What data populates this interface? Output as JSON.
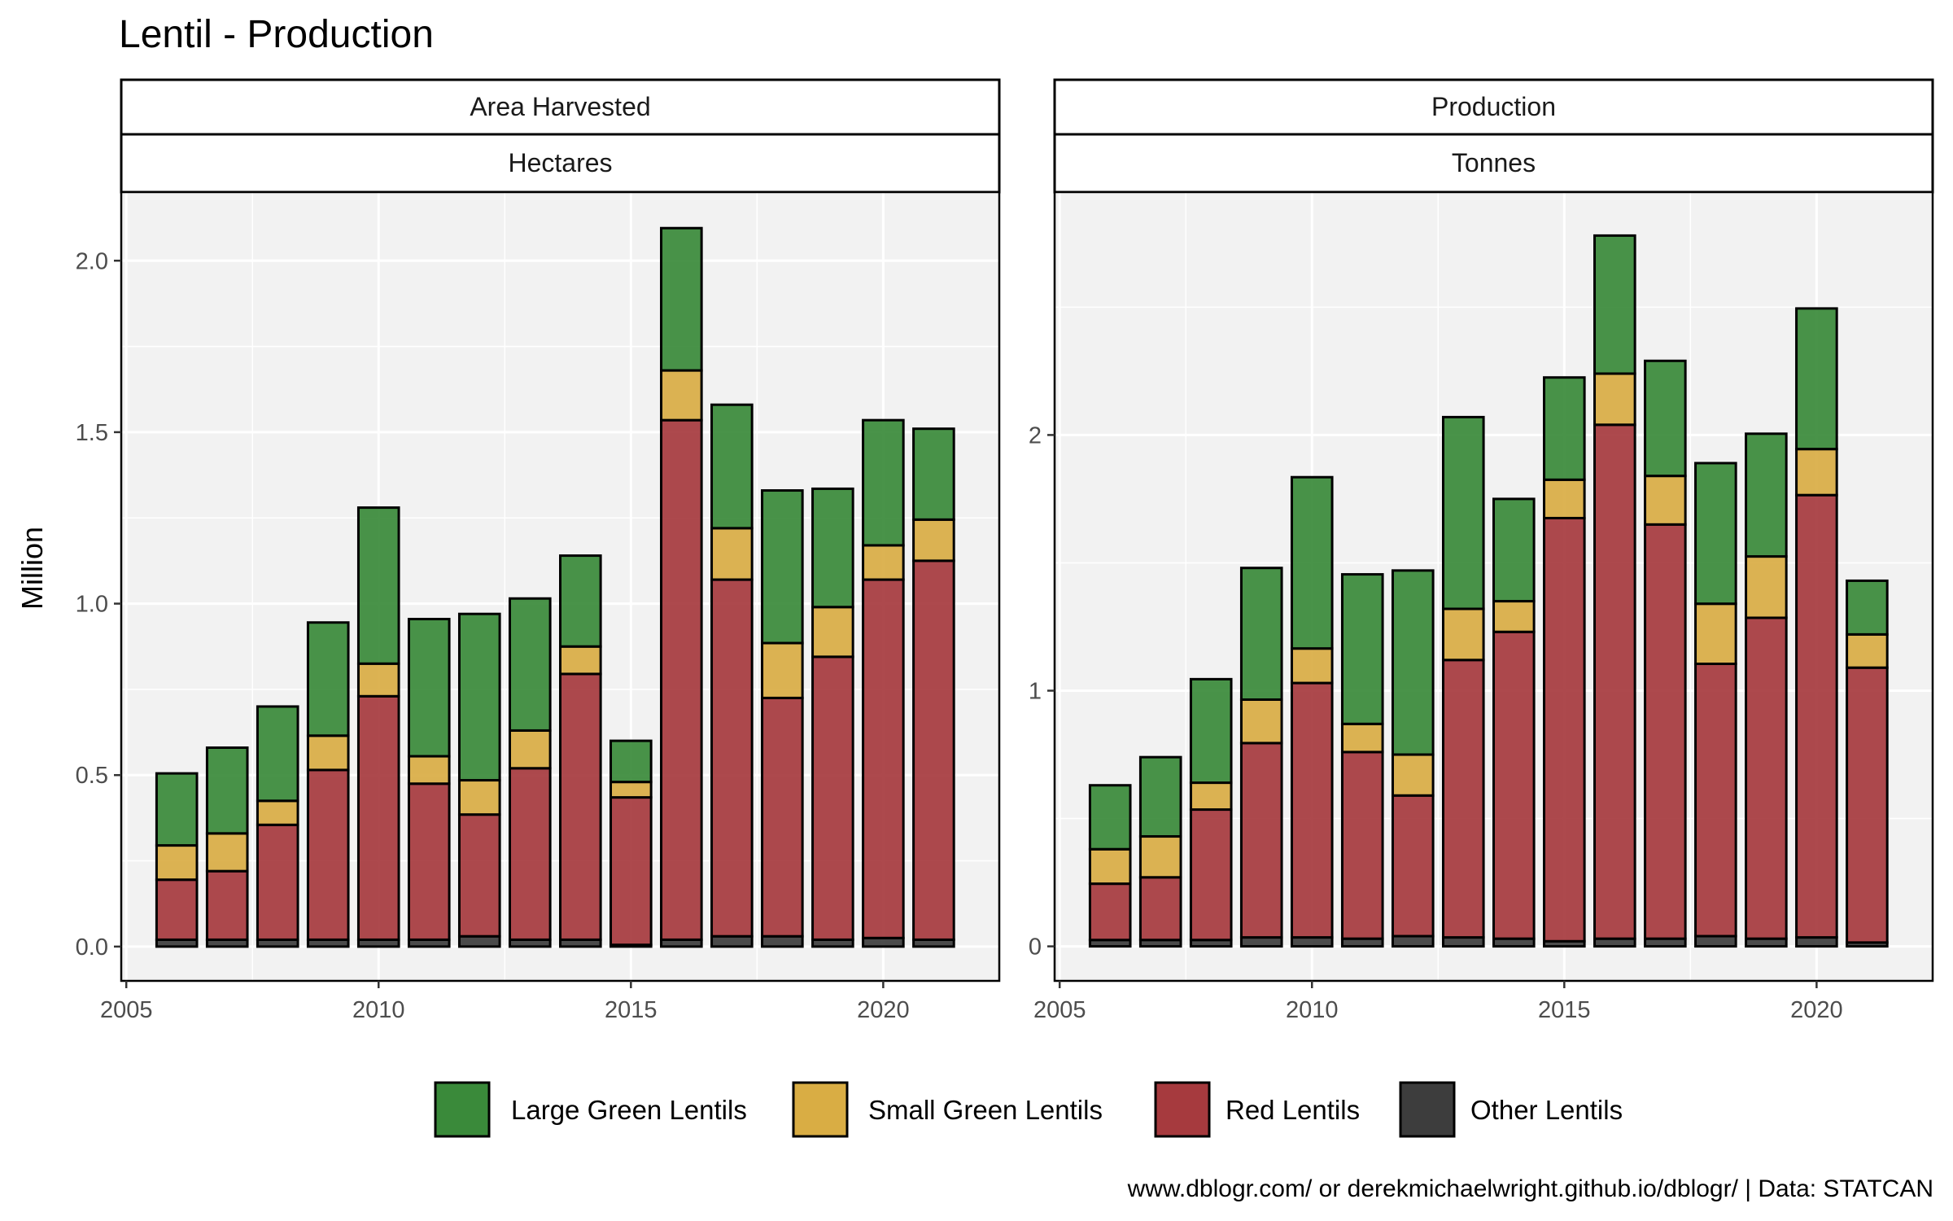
{
  "title": "Lentil - Production",
  "y_axis_title": "Million",
  "caption": "www.dblogr.com/ or derekmichaelwright.github.io/dblogr/ | Data: STATCAN",
  "legend": [
    {
      "label": "Large Green Lentils",
      "color": "#3a8a3a"
    },
    {
      "label": "Small Green Lentils",
      "color": "#d9ad44"
    },
    {
      "label": "Red Lentils",
      "color": "#a63a3e"
    },
    {
      "label": "Other Lentils",
      "color": "#3d3d3d"
    }
  ],
  "chart_data": [
    {
      "type": "bar",
      "stacked": true,
      "facet_top": "Area Harvested",
      "facet_bottom": "Hectares",
      "x": [
        2006,
        2007,
        2008,
        2009,
        2010,
        2011,
        2012,
        2013,
        2014,
        2015,
        2016,
        2017,
        2018,
        2019,
        2020,
        2021
      ],
      "xticks": [
        2005,
        2010,
        2015,
        2020
      ],
      "xtick_labels": [
        "2005",
        "2010",
        "2015",
        "2020"
      ],
      "xlim": [
        2004.9,
        2022.3
      ],
      "ylim": [
        -0.1,
        2.2
      ],
      "yticks": [
        0.0,
        0.5,
        1.0,
        1.5,
        2.0
      ],
      "ytick_labels": [
        "0.0",
        "0.5",
        "1.0",
        "1.5",
        "2.0"
      ],
      "series": [
        {
          "name": "Other Lentils",
          "values": [
            0.02,
            0.02,
            0.02,
            0.02,
            0.02,
            0.02,
            0.03,
            0.02,
            0.02,
            0.005,
            0.02,
            0.03,
            0.03,
            0.02,
            0.025,
            0.02
          ]
        },
        {
          "name": "Red Lentils",
          "values": [
            0.175,
            0.2,
            0.335,
            0.495,
            0.71,
            0.455,
            0.355,
            0.5,
            0.775,
            0.43,
            1.515,
            1.04,
            0.695,
            0.825,
            1.045,
            1.105
          ]
        },
        {
          "name": "Small Green Lentils",
          "values": [
            0.1,
            0.11,
            0.07,
            0.1,
            0.095,
            0.08,
            0.1,
            0.11,
            0.08,
            0.045,
            0.145,
            0.15,
            0.16,
            0.145,
            0.1,
            0.12
          ]
        },
        {
          "name": "Large Green Lentils",
          "values": [
            0.21,
            0.25,
            0.275,
            0.33,
            0.455,
            0.4,
            0.485,
            0.385,
            0.265,
            0.12,
            0.415,
            0.36,
            0.445,
            0.345,
            0.365,
            0.265
          ]
        }
      ]
    },
    {
      "type": "bar",
      "stacked": true,
      "facet_top": "Production",
      "facet_bottom": "Tonnes",
      "x": [
        2006,
        2007,
        2008,
        2009,
        2010,
        2011,
        2012,
        2013,
        2014,
        2015,
        2016,
        2017,
        2018,
        2019,
        2020,
        2021
      ],
      "xticks": [
        2005,
        2010,
        2015,
        2020
      ],
      "xtick_labels": [
        "2005",
        "2010",
        "2015",
        "2020"
      ],
      "xlim": [
        2004.9,
        2022.3
      ],
      "ylim": [
        -0.135,
        2.95
      ],
      "yticks": [
        0,
        1,
        2
      ],
      "ytick_labels": [
        "0",
        "1",
        "2"
      ],
      "series": [
        {
          "name": "Other Lentils",
          "values": [
            0.025,
            0.025,
            0.025,
            0.035,
            0.035,
            0.03,
            0.04,
            0.035,
            0.03,
            0.02,
            0.03,
            0.03,
            0.04,
            0.03,
            0.035,
            0.015
          ]
        },
        {
          "name": "Red Lentils",
          "values": [
            0.22,
            0.245,
            0.51,
            0.76,
            0.995,
            0.73,
            0.55,
            1.085,
            1.2,
            1.655,
            2.01,
            1.62,
            1.065,
            1.255,
            1.73,
            1.075
          ]
        },
        {
          "name": "Small Green Lentils",
          "values": [
            0.135,
            0.16,
            0.105,
            0.17,
            0.135,
            0.11,
            0.16,
            0.2,
            0.12,
            0.15,
            0.2,
            0.19,
            0.235,
            0.24,
            0.18,
            0.13
          ]
        },
        {
          "name": "Large Green Lentils",
          "values": [
            0.25,
            0.31,
            0.405,
            0.515,
            0.67,
            0.585,
            0.72,
            0.75,
            0.4,
            0.4,
            0.54,
            0.45,
            0.55,
            0.48,
            0.55,
            0.21
          ]
        }
      ]
    }
  ]
}
